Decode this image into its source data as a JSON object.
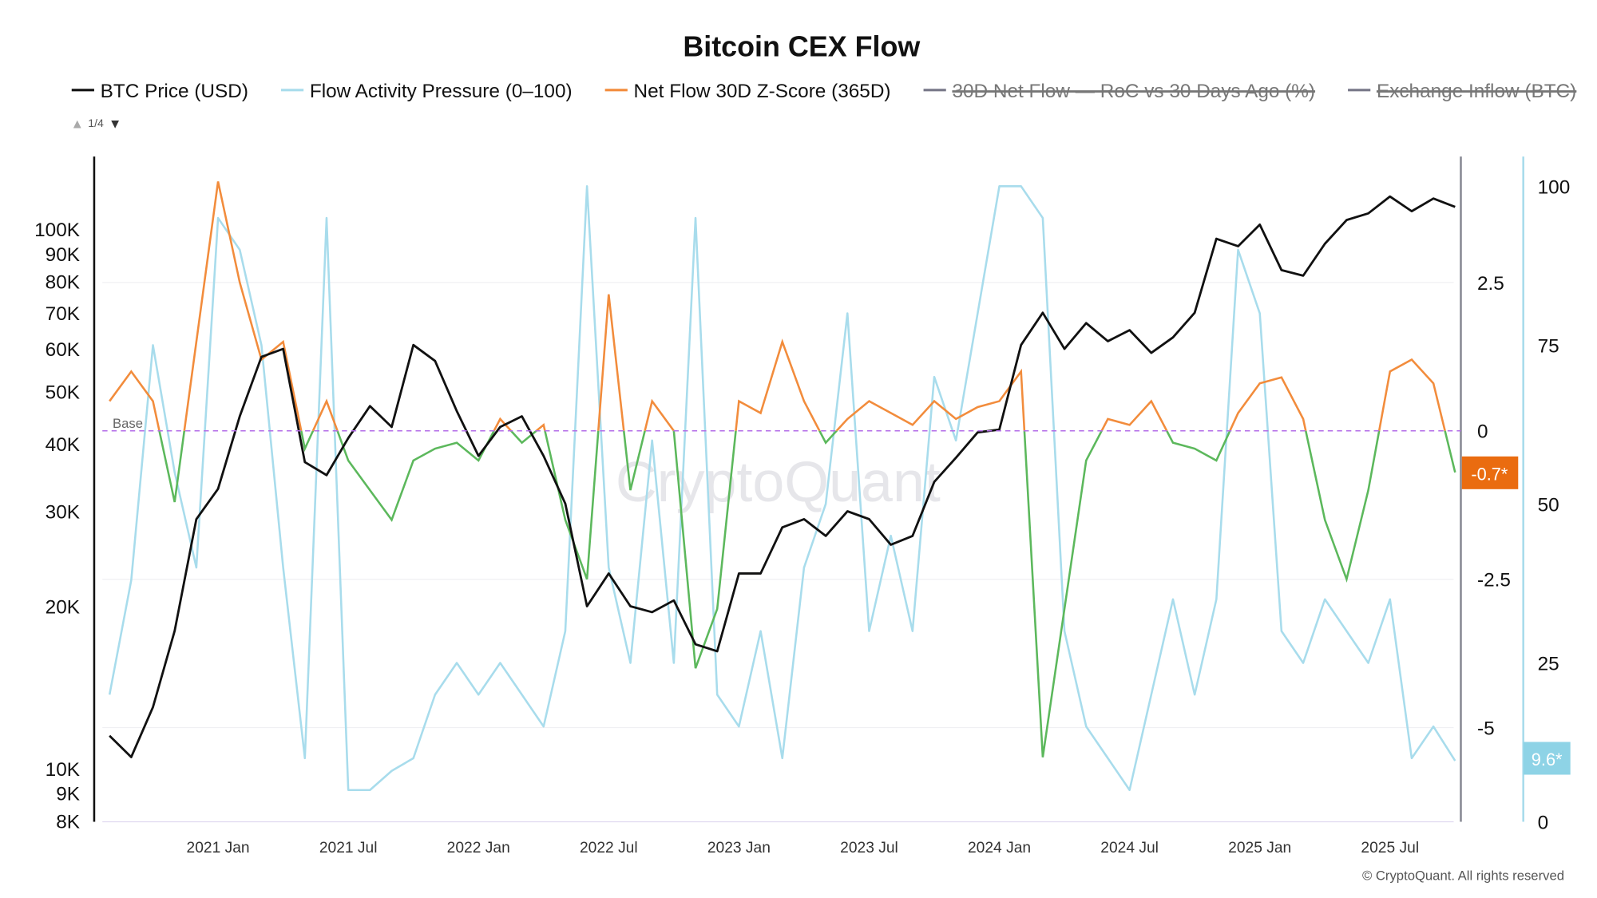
{
  "chart_data": {
    "type": "line",
    "title": "Bitcoin CEX Flow",
    "legend": [
      {
        "label": "BTC Price (USD)",
        "color": "#111111",
        "active": true
      },
      {
        "label": "Flow Activity Pressure (0–100)",
        "color": "#a8dcec",
        "active": true
      },
      {
        "label": "Net Flow 30D Z-Score (365D)",
        "color": "#f28c3c",
        "active": true
      },
      {
        "label": "30D Net Flow — RoC vs 30 Days Ago (%)",
        "color": "#777788",
        "active": false
      },
      {
        "label": "Exchange Inflow (BTC)",
        "color": "#777788",
        "active": false
      }
    ],
    "legend_page": {
      "up": "▲",
      "label": "1/4",
      "down": "▼"
    },
    "x_ticks": [
      "2021 Jan",
      "2021 Jul",
      "2022 Jan",
      "2022 Jul",
      "2023 Jan",
      "2023 Jul",
      "2024 Jan",
      "2024 Jul",
      "2025 Jan",
      "2025 Jul"
    ],
    "y_left": {
      "scale": "log",
      "ticks": [
        "8K",
        "9K",
        "10K",
        "20K",
        "30K",
        "40K",
        "50K",
        "60K",
        "70K",
        "80K",
        "90K",
        "100K"
      ],
      "range": [
        8000,
        150000
      ]
    },
    "y_zscore": {
      "ticks": [
        "2.5",
        "0",
        "-2.5",
        "-5"
      ],
      "range": [
        -6.5,
        4.5
      ]
    },
    "y_flow": {
      "ticks": [
        "100",
        "75",
        "50",
        "25",
        "0"
      ],
      "range": [
        0,
        100
      ]
    },
    "baseline": {
      "label": "Base",
      "value": 0,
      "color": "#b36ce8"
    },
    "zscore_colors": {
      "positive": "#f28c3c",
      "negative": "#5cb85c"
    },
    "dates": [
      "2020-08",
      "2020-09",
      "2020-10",
      "2020-11",
      "2020-12",
      "2021-01",
      "2021-02",
      "2021-03",
      "2021-04",
      "2021-05",
      "2021-06",
      "2021-07",
      "2021-08",
      "2021-09",
      "2021-10",
      "2021-11",
      "2021-12",
      "2022-01",
      "2022-02",
      "2022-03",
      "2022-04",
      "2022-05",
      "2022-06",
      "2022-07",
      "2022-08",
      "2022-09",
      "2022-10",
      "2022-11",
      "2022-12",
      "2023-01",
      "2023-02",
      "2023-03",
      "2023-04",
      "2023-05",
      "2023-06",
      "2023-07",
      "2023-08",
      "2023-09",
      "2023-10",
      "2023-11",
      "2023-12",
      "2024-01",
      "2024-02",
      "2024-03",
      "2024-04",
      "2024-05",
      "2024-06",
      "2024-07",
      "2024-08",
      "2024-09",
      "2024-10",
      "2024-11",
      "2024-12",
      "2025-01",
      "2025-02",
      "2025-03",
      "2025-04",
      "2025-05",
      "2025-06",
      "2025-07",
      "2025-08",
      "2025-09",
      "2025-10"
    ],
    "series": [
      {
        "name": "BTC Price (USD)",
        "axis": "left",
        "values": [
          11500,
          10500,
          13000,
          18000,
          29000,
          33000,
          45000,
          58000,
          60000,
          37000,
          35000,
          41000,
          47000,
          43000,
          61000,
          57000,
          46000,
          38000,
          43000,
          45000,
          38000,
          31000,
          20000,
          23000,
          20000,
          19500,
          20500,
          17000,
          16500,
          23000,
          23000,
          28000,
          29000,
          27000,
          30000,
          29000,
          26000,
          27000,
          34000,
          37700,
          42000,
          42500,
          61000,
          70000,
          60000,
          67000,
          62000,
          65000,
          59000,
          63000,
          70000,
          96000,
          93000,
          102000,
          84000,
          82000,
          94000,
          104000,
          107000,
          115000,
          108000,
          114000,
          110000
        ]
      },
      {
        "name": "Flow Activity Pressure (0–100)",
        "axis": "flow",
        "values": [
          20,
          38,
          75,
          55,
          40,
          95,
          90,
          75,
          40,
          10,
          95,
          5,
          5,
          8,
          10,
          20,
          25,
          20,
          25,
          20,
          15,
          30,
          100,
          40,
          25,
          60,
          25,
          95,
          20,
          15,
          30,
          10,
          40,
          50,
          80,
          30,
          45,
          30,
          70,
          60,
          80,
          100,
          100,
          95,
          30,
          15,
          10,
          5,
          20,
          35,
          20,
          35,
          90,
          80,
          30,
          25,
          35,
          30,
          25,
          35,
          10,
          15,
          9.6
        ]
      },
      {
        "name": "Net Flow 30D Z-Score (365D)",
        "axis": "zscore",
        "values": [
          0.5,
          1.0,
          0.5,
          -1.2,
          1.5,
          4.2,
          2.5,
          1.2,
          1.5,
          -0.3,
          0.5,
          -0.5,
          -1.0,
          -1.5,
          -0.5,
          -0.3,
          -0.2,
          -0.5,
          0.2,
          -0.2,
          0.1,
          -1.5,
          -2.5,
          2.3,
          -1.0,
          0.5,
          0,
          -4,
          -3,
          0.5,
          0.3,
          1.5,
          0.5,
          -0.2,
          0.2,
          0.5,
          0.3,
          0.1,
          0.5,
          0.2,
          0.4,
          0.5,
          1.0,
          -5.5,
          -3,
          -0.5,
          0.2,
          0.1,
          0.5,
          -0.2,
          -0.3,
          -0.5,
          0.3,
          0.8,
          0.9,
          0.2,
          -1.5,
          -2.5,
          -1,
          1.0,
          1.2,
          0.8,
          -0.7
        ]
      }
    ],
    "last_value_labels": {
      "zscore": "-0.7*",
      "flow": "9.6*"
    }
  },
  "watermark": "CryptoQuant",
  "footer": "© CryptoQuant. All rights reserved"
}
